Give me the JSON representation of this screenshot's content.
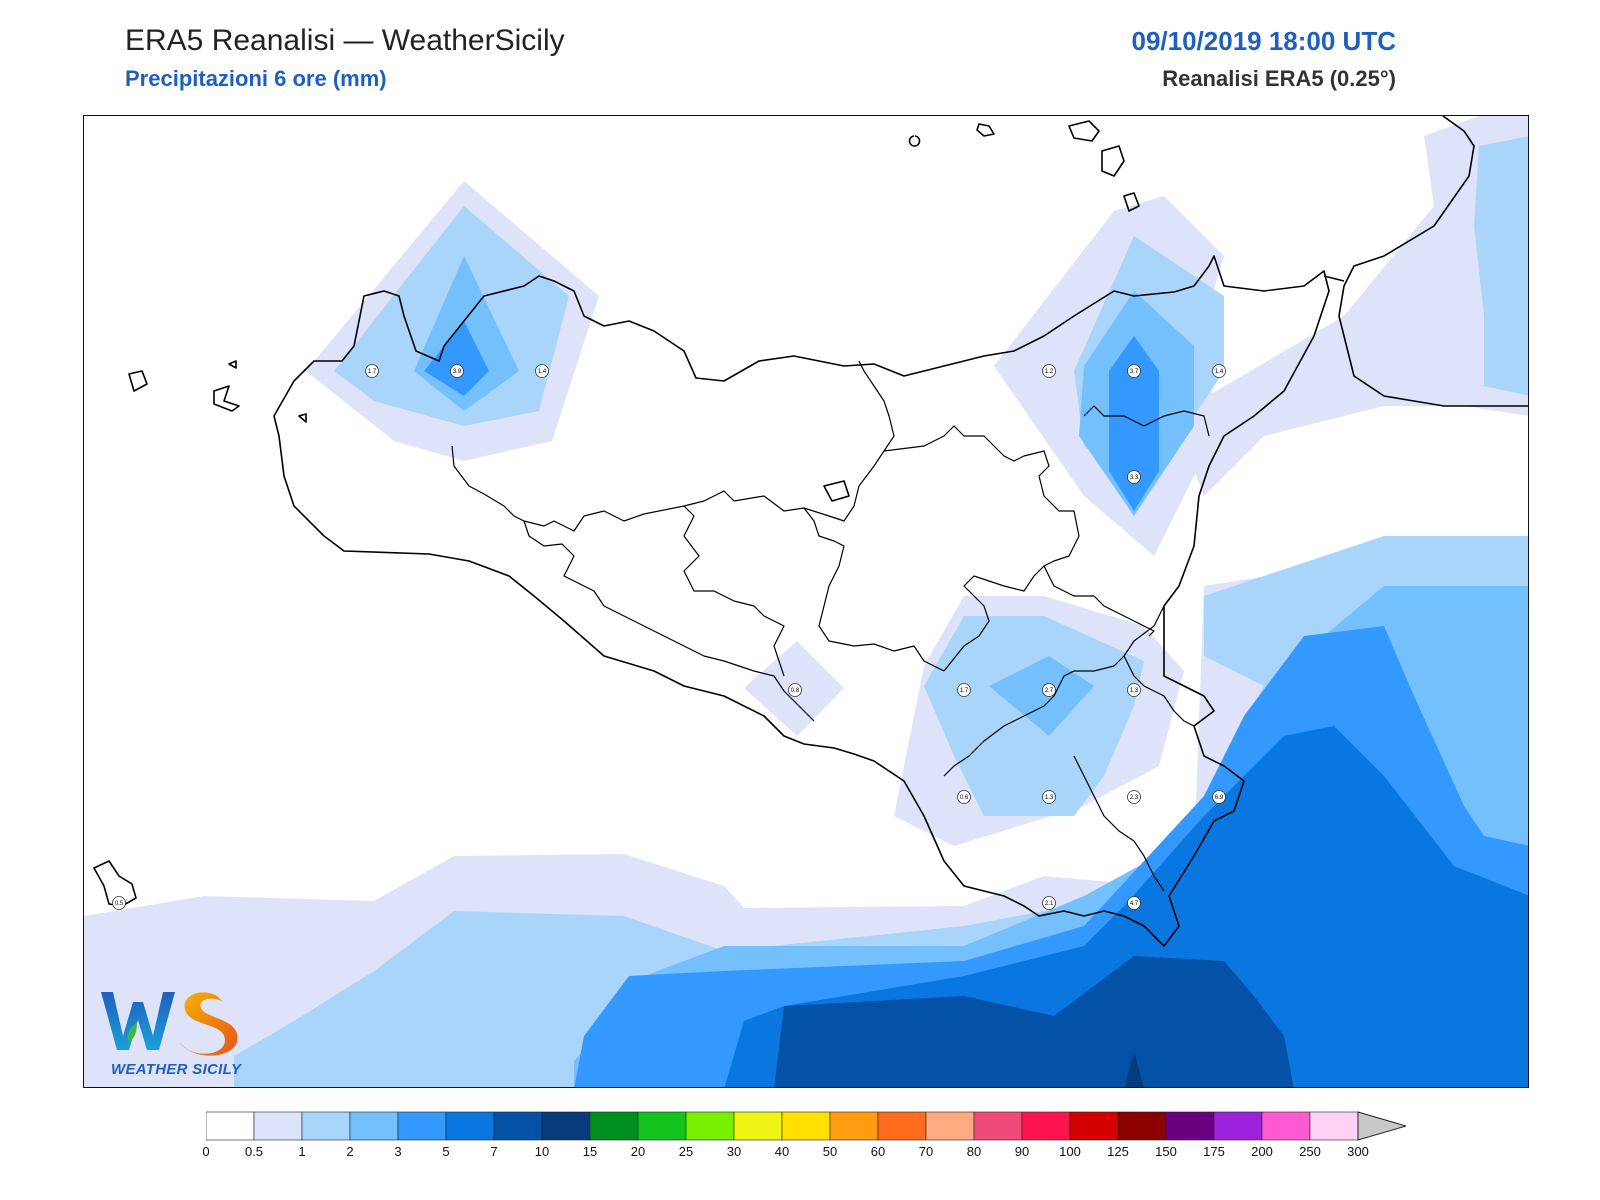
{
  "header": {
    "title": "ERA5 Reanalisi — WeatherSicily",
    "subtitle": "Precipitazioni 6 ore (mm)",
    "datetime": "09/10/2019 18:00 UTC",
    "source": "Reanalisi ERA5 (0.25°)"
  },
  "logo": {
    "text": "WEATHER SICILY",
    "letters": "WS"
  },
  "stations": [
    {
      "id": "s1",
      "value": "1.7"
    },
    {
      "id": "s2",
      "value": "3.9"
    },
    {
      "id": "s3",
      "value": "1.4"
    },
    {
      "id": "s4",
      "value": "1.2"
    },
    {
      "id": "s5",
      "value": "3.7"
    },
    {
      "id": "s6",
      "value": "1.4"
    },
    {
      "id": "s7",
      "value": "3.3"
    },
    {
      "id": "s8",
      "value": "0.8"
    },
    {
      "id": "s9",
      "value": "1.7"
    },
    {
      "id": "s10",
      "value": "2.7"
    },
    {
      "id": "s11",
      "value": "1.3"
    },
    {
      "id": "s12",
      "value": "0.6"
    },
    {
      "id": "s13",
      "value": "1.3"
    },
    {
      "id": "s14",
      "value": "2.3"
    },
    {
      "id": "s15",
      "value": "6.9"
    },
    {
      "id": "s16",
      "value": "2.1"
    },
    {
      "id": "s17",
      "value": "4.7"
    },
    {
      "id": "s18",
      "value": "0.5"
    }
  ],
  "colorbar": {
    "labels": [
      "0",
      "0.5",
      "1",
      "2",
      "3",
      "5",
      "7",
      "10",
      "15",
      "20",
      "25",
      "30",
      "40",
      "50",
      "60",
      "70",
      "80",
      "90",
      "100",
      "125",
      "150",
      "175",
      "200",
      "250",
      "300"
    ],
    "colors": [
      "#ffffff",
      "#dfe3fa",
      "#a9d5fb",
      "#74c0fd",
      "#3399ff",
      "#0a77e0",
      "#0452a8",
      "#063a7a",
      "#008f1e",
      "#14c41e",
      "#76ef00",
      "#eef514",
      "#ffe000",
      "#ff9c10",
      "#ff6c1e",
      "#ffaa80",
      "#ef4a7a",
      "#ff1450",
      "#d40000",
      "#8c0000",
      "#6a0080",
      "#9e22dc",
      "#ff5ad2",
      "#ffd2f5"
    ]
  }
}
